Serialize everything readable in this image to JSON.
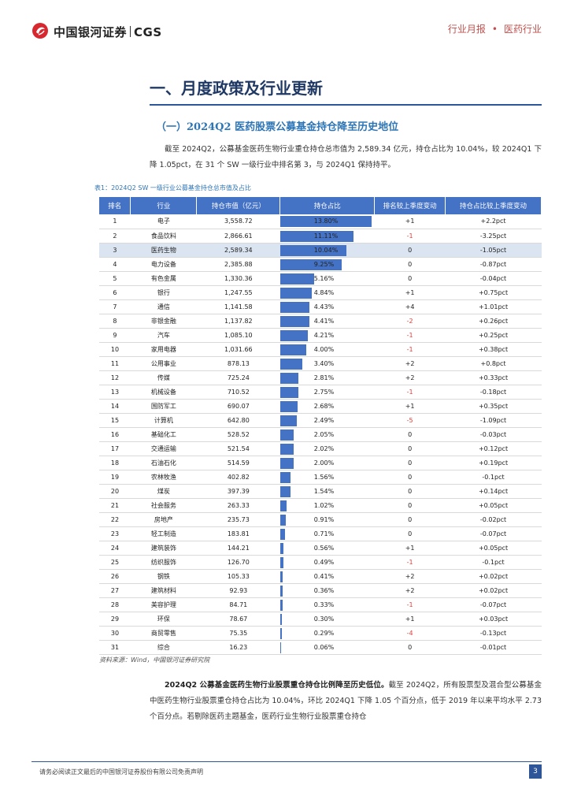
{
  "header": {
    "brand": "中国银河证券",
    "brand_en": "CGS",
    "report_type": "行业月报",
    "dot": "•",
    "industry": "医药行业"
  },
  "section_title": "一、月度政策及行业更新",
  "sub_title": "（一）2024Q2 医药股票公募基金持仓降至历史地位",
  "paragraph1": "截至 2024Q2，公募基金医药生物行业重仓持仓总市值为 2,589.34 亿元，持仓占比为 10.04%，较 2024Q1 下降 1.05pct，在 31 个 SW 一级行业中排名第 3，与 2024Q1 保持持平。",
  "table": {
    "caption": "表1：2024Q2 SW 一级行业公募基金持仓总市值及占比",
    "headers": [
      "排名",
      "行业",
      "持仓市值（亿元）",
      "持仓占比",
      "排名较上季度变动",
      "持仓占比较上季度变动"
    ],
    "highlight_row": 3,
    "rows": [
      {
        "rank": "1",
        "industry": "电子",
        "value": "3,558.72",
        "pct": "13.80%",
        "pct_num": 13.8,
        "rank_chg": "+1",
        "pct_chg": "+2.2pct"
      },
      {
        "rank": "2",
        "industry": "食品饮料",
        "value": "2,866.61",
        "pct": "11.11%",
        "pct_num": 11.11,
        "rank_chg": "-1",
        "pct_chg": "-3.25pct"
      },
      {
        "rank": "3",
        "industry": "医药生物",
        "value": "2,589.34",
        "pct": "10.04%",
        "pct_num": 10.04,
        "rank_chg": "0",
        "pct_chg": "-1.05pct"
      },
      {
        "rank": "4",
        "industry": "电力设备",
        "value": "2,385.88",
        "pct": "9.25%",
        "pct_num": 9.25,
        "rank_chg": "0",
        "pct_chg": "-0.87pct"
      },
      {
        "rank": "5",
        "industry": "有色金属",
        "value": "1,330.36",
        "pct": "5.16%",
        "pct_num": 5.16,
        "rank_chg": "0",
        "pct_chg": "-0.04pct"
      },
      {
        "rank": "6",
        "industry": "银行",
        "value": "1,247.55",
        "pct": "4.84%",
        "pct_num": 4.84,
        "rank_chg": "+1",
        "pct_chg": "+0.75pct"
      },
      {
        "rank": "7",
        "industry": "通信",
        "value": "1,141.58",
        "pct": "4.43%",
        "pct_num": 4.43,
        "rank_chg": "+4",
        "pct_chg": "+1.01pct"
      },
      {
        "rank": "8",
        "industry": "非银金融",
        "value": "1,137.82",
        "pct": "4.41%",
        "pct_num": 4.41,
        "rank_chg": "-2",
        "pct_chg": "+0.26pct"
      },
      {
        "rank": "9",
        "industry": "汽车",
        "value": "1,085.10",
        "pct": "4.21%",
        "pct_num": 4.21,
        "rank_chg": "-1",
        "pct_chg": "+0.25pct"
      },
      {
        "rank": "10",
        "industry": "家用电器",
        "value": "1,031.66",
        "pct": "4.00%",
        "pct_num": 4.0,
        "rank_chg": "-1",
        "pct_chg": "+0.38pct"
      },
      {
        "rank": "11",
        "industry": "公用事业",
        "value": "878.13",
        "pct": "3.40%",
        "pct_num": 3.4,
        "rank_chg": "+2",
        "pct_chg": "+0.8pct"
      },
      {
        "rank": "12",
        "industry": "传媒",
        "value": "725.24",
        "pct": "2.81%",
        "pct_num": 2.81,
        "rank_chg": "+2",
        "pct_chg": "+0.33pct"
      },
      {
        "rank": "13",
        "industry": "机械设备",
        "value": "710.52",
        "pct": "2.75%",
        "pct_num": 2.75,
        "rank_chg": "-1",
        "pct_chg": "-0.18pct"
      },
      {
        "rank": "14",
        "industry": "国防军工",
        "value": "690.07",
        "pct": "2.68%",
        "pct_num": 2.68,
        "rank_chg": "+1",
        "pct_chg": "+0.35pct"
      },
      {
        "rank": "15",
        "industry": "计算机",
        "value": "642.80",
        "pct": "2.49%",
        "pct_num": 2.49,
        "rank_chg": "-5",
        "pct_chg": "-1.09pct"
      },
      {
        "rank": "16",
        "industry": "基础化工",
        "value": "528.52",
        "pct": "2.05%",
        "pct_num": 2.05,
        "rank_chg": "0",
        "pct_chg": "-0.03pct"
      },
      {
        "rank": "17",
        "industry": "交通运输",
        "value": "521.54",
        "pct": "2.02%",
        "pct_num": 2.02,
        "rank_chg": "0",
        "pct_chg": "+0.12pct"
      },
      {
        "rank": "18",
        "industry": "石油石化",
        "value": "514.59",
        "pct": "2.00%",
        "pct_num": 2.0,
        "rank_chg": "0",
        "pct_chg": "+0.19pct"
      },
      {
        "rank": "19",
        "industry": "农林牧渔",
        "value": "402.82",
        "pct": "1.56%",
        "pct_num": 1.56,
        "rank_chg": "0",
        "pct_chg": "-0.1pct"
      },
      {
        "rank": "20",
        "industry": "煤炭",
        "value": "397.39",
        "pct": "1.54%",
        "pct_num": 1.54,
        "rank_chg": "0",
        "pct_chg": "+0.14pct"
      },
      {
        "rank": "21",
        "industry": "社会服务",
        "value": "263.33",
        "pct": "1.02%",
        "pct_num": 1.02,
        "rank_chg": "0",
        "pct_chg": "+0.05pct"
      },
      {
        "rank": "22",
        "industry": "房地产",
        "value": "235.73",
        "pct": "0.91%",
        "pct_num": 0.91,
        "rank_chg": "0",
        "pct_chg": "-0.02pct"
      },
      {
        "rank": "23",
        "industry": "轻工制造",
        "value": "183.81",
        "pct": "0.71%",
        "pct_num": 0.71,
        "rank_chg": "0",
        "pct_chg": "-0.07pct"
      },
      {
        "rank": "24",
        "industry": "建筑装饰",
        "value": "144.21",
        "pct": "0.56%",
        "pct_num": 0.56,
        "rank_chg": "+1",
        "pct_chg": "+0.05pct"
      },
      {
        "rank": "25",
        "industry": "纺织服饰",
        "value": "126.70",
        "pct": "0.49%",
        "pct_num": 0.49,
        "rank_chg": "-1",
        "pct_chg": "-0.1pct"
      },
      {
        "rank": "26",
        "industry": "钢铁",
        "value": "105.33",
        "pct": "0.41%",
        "pct_num": 0.41,
        "rank_chg": "+2",
        "pct_chg": "+0.02pct"
      },
      {
        "rank": "27",
        "industry": "建筑材料",
        "value": "92.93",
        "pct": "0.36%",
        "pct_num": 0.36,
        "rank_chg": "+2",
        "pct_chg": "+0.02pct"
      },
      {
        "rank": "28",
        "industry": "美容护理",
        "value": "84.71",
        "pct": "0.33%",
        "pct_num": 0.33,
        "rank_chg": "-1",
        "pct_chg": "-0.07pct"
      },
      {
        "rank": "29",
        "industry": "环保",
        "value": "78.67",
        "pct": "0.30%",
        "pct_num": 0.3,
        "rank_chg": "+1",
        "pct_chg": "+0.03pct"
      },
      {
        "rank": "30",
        "industry": "商贸零售",
        "value": "75.35",
        "pct": "0.29%",
        "pct_num": 0.29,
        "rank_chg": "-4",
        "pct_chg": "-0.13pct"
      },
      {
        "rank": "31",
        "industry": "综合",
        "value": "16.23",
        "pct": "0.06%",
        "pct_num": 0.06,
        "rank_chg": "0",
        "pct_chg": "-0.01pct"
      }
    ]
  },
  "source": "资料来源：Wind，中国银河证券研究院",
  "paragraph2_bold": "2024Q2 公募基金医药生物行业股票重仓持仓比例降至历史低位。",
  "paragraph2": "截至 2024Q2，所有股票型及混合型公募基金中医药生物行业股票重仓持仓占比为 10.04%，环比 2024Q1 下降 1.05 个百分点，低于 2019 年以来平均水平 2.73 个百分点。若剔除医药主题基金，医药行业生物行业股票重仓持仓",
  "footer": {
    "disclaimer": "请务必阅读正文最后的中国银河证券股份有限公司免责声明",
    "page": "3"
  },
  "colors": {
    "bar": "#4472c4",
    "negative": "#e0403c",
    "accent_red": "#c0504d",
    "heading": "#1f3864"
  }
}
